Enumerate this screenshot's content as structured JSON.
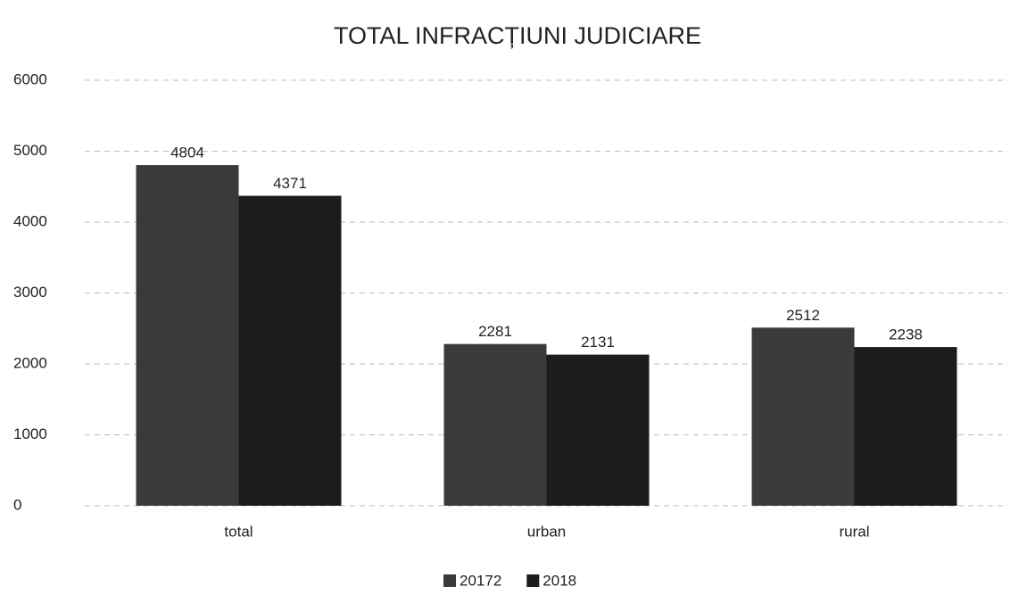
{
  "chart_data": {
    "type": "bar",
    "title": "TOTAL INFRACȚIUNI JUDICIARE",
    "categories": [
      "total",
      "urban",
      "rural"
    ],
    "series": [
      {
        "name": "20172",
        "color": "#3a3a3a",
        "values": [
          4804,
          2281,
          2512
        ]
      },
      {
        "name": "2018",
        "color": "#1c1c1c",
        "values": [
          4371,
          2131,
          2238
        ]
      }
    ],
    "ylim": [
      0,
      6000
    ],
    "yticks": [
      0,
      1000,
      2000,
      3000,
      4000,
      5000,
      6000
    ],
    "grid": true,
    "legend": "bottom"
  }
}
